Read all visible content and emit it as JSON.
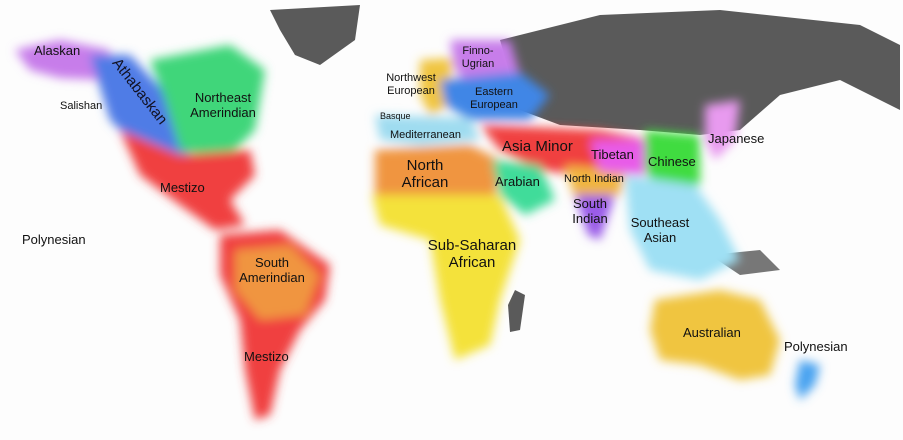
{
  "map": {
    "regions": [
      {
        "label": "Alaskan",
        "color": "#c77dea"
      },
      {
        "label": "Athabaskan",
        "color": "#4f7be6"
      },
      {
        "label": "Salishan",
        "color": "#5c8ee8"
      },
      {
        "label": "Northeast Amerindian",
        "color": "#3fd67a"
      },
      {
        "label": "Mestizo",
        "color": "#f0403f"
      },
      {
        "label": "Polynesian",
        "color": "#4aa3f0"
      },
      {
        "label": "South Amerindian",
        "color": "#f0953f"
      },
      {
        "label": "Mestizo",
        "color": "#f0403f"
      },
      {
        "label": "Northwest European",
        "color": "#f0c53f"
      },
      {
        "label": "Finno-Ugrian",
        "color": "#c77dea"
      },
      {
        "label": "Eastern European",
        "color": "#3f86e6"
      },
      {
        "label": "Basque",
        "color": "#f0c53f"
      },
      {
        "label": "Mediterranean",
        "color": "#9fdcf0"
      },
      {
        "label": "North African",
        "color": "#f0953f"
      },
      {
        "label": "Sub-Saharan African",
        "color": "#f4e23a"
      },
      {
        "label": "Asia Minor",
        "color": "#f0403f"
      },
      {
        "label": "Arabian",
        "color": "#3fdc9a"
      },
      {
        "label": "Tibetan",
        "color": "#e85ce8"
      },
      {
        "label": "North Indian",
        "color": "#f0b53f"
      },
      {
        "label": "South Indian",
        "color": "#9a5ce8"
      },
      {
        "label": "Chinese",
        "color": "#3fdc3f"
      },
      {
        "label": "Japanese",
        "color": "#e89aef"
      },
      {
        "label": "Southeast Asian",
        "color": "#9fe0f4"
      },
      {
        "label": "Australian",
        "color": "#f0c53f"
      },
      {
        "label": "Polynesian",
        "color": "#4aa3f0"
      }
    ]
  }
}
